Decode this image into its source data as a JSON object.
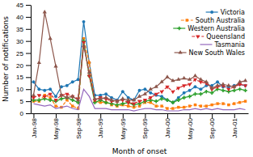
{
  "chart_data": {
    "type": "line",
    "xlabel": "Month of onset",
    "ylabel": "Number of notifications",
    "categories": [
      "Jan-98",
      null,
      null,
      null,
      "May-98",
      null,
      null,
      null,
      "Sep-98",
      null,
      null,
      null,
      "Jan-99",
      null,
      null,
      null,
      "May-99",
      null,
      null,
      null,
      "Sep-99",
      null,
      null,
      null,
      "Jan-00",
      null,
      null,
      null,
      "May-00",
      null,
      null,
      null,
      "Sep-00",
      null,
      null,
      null,
      "Jan-01",
      null,
      null
    ],
    "series": [
      {
        "name": "Victoria",
        "marker": "circle",
        "line_style": "solid",
        "values": [
          13,
          10,
          9.5,
          10,
          7,
          11,
          11.5,
          13,
          14,
          38,
          21,
          7.5,
          7.5,
          8,
          6.5,
          5.5,
          9,
          6.5,
          5.5,
          9.5,
          10,
          8.5,
          7.5,
          7,
          5.5,
          4.5,
          6.5,
          8.5,
          9.5,
          11,
          10,
          11.5,
          11.5,
          13,
          11,
          11,
          11.5,
          12,
          11.5
        ]
      },
      {
        "name": "South Australia",
        "marker": "square",
        "line_style": "dashed",
        "values": [
          5,
          5,
          7.5,
          6.5,
          3,
          2.5,
          5.5,
          3,
          2,
          31,
          21,
          5,
          4.5,
          4.5,
          3.5,
          3,
          3.5,
          3,
          2.5,
          3,
          4.5,
          4.5,
          3,
          3,
          2,
          2,
          2.5,
          2.5,
          3,
          3.5,
          3,
          3,
          3.5,
          4,
          4,
          3.5,
          4,
          4.5,
          5
        ]
      },
      {
        "name": "Western Australia",
        "marker": "plus",
        "line_style": "solid",
        "values": [
          5.5,
          5.5,
          6,
          5.5,
          5,
          6,
          6.5,
          5.5,
          4.5,
          30,
          15.5,
          4.5,
          5.5,
          4.5,
          4,
          3.5,
          4,
          4.5,
          3.5,
          4,
          5,
          5.5,
          5,
          6,
          5.5,
          4.5,
          5.5,
          6.5,
          7,
          8,
          8,
          9,
          8.5,
          10,
          9.5,
          9,
          9.5,
          10,
          9.5
        ]
      },
      {
        "name": "Queensland",
        "marker": "triangle-down",
        "line_style": "dashed",
        "values": [
          6.5,
          7.5,
          7,
          8,
          5.5,
          7.5,
          8,
          7,
          6,
          29.5,
          15.5,
          5.5,
          6.5,
          6,
          5,
          5,
          5.5,
          4.5,
          4,
          5,
          5.5,
          6.5,
          8,
          9,
          11,
          9,
          10.5,
          11.5,
          12,
          14,
          13,
          12.5,
          10,
          11,
          11.5,
          10,
          11,
          12,
          11.5
        ]
      },
      {
        "name": "Tasmania",
        "marker": "none",
        "line_style": "solid",
        "values": [
          4,
          3.5,
          3,
          3.5,
          2,
          2.5,
          3,
          2,
          1.5,
          10,
          7,
          2,
          2,
          2,
          1.5,
          1.5,
          1.5,
          1.5,
          1,
          1.5,
          2,
          2,
          1.5,
          1.5,
          1,
          1,
          1,
          1.5,
          1.5,
          2,
          1.5,
          2,
          1.5,
          2,
          1.5,
          1.5,
          1.5,
          2,
          1.5
        ]
      },
      {
        "name": "New South Wales",
        "marker": "triangle-up",
        "line_style": "solid",
        "values": [
          7.5,
          21,
          42,
          31,
          19.5,
          7.5,
          6.5,
          7,
          5.5,
          28,
          17,
          6,
          6,
          6.5,
          5.5,
          5,
          6,
          5.5,
          5.5,
          7,
          8,
          10,
          11,
          13,
          15,
          13.5,
          14,
          14.5,
          14,
          15.5,
          14,
          13,
          10.5,
          11.5,
          12,
          11.5,
          11,
          13,
          13.5
        ]
      }
    ],
    "ylim": [
      0,
      45
    ],
    "yticks": [
      0,
      5,
      10,
      15,
      20,
      25,
      30,
      35,
      40,
      45
    ],
    "grid": false,
    "legend": "upper-right"
  }
}
